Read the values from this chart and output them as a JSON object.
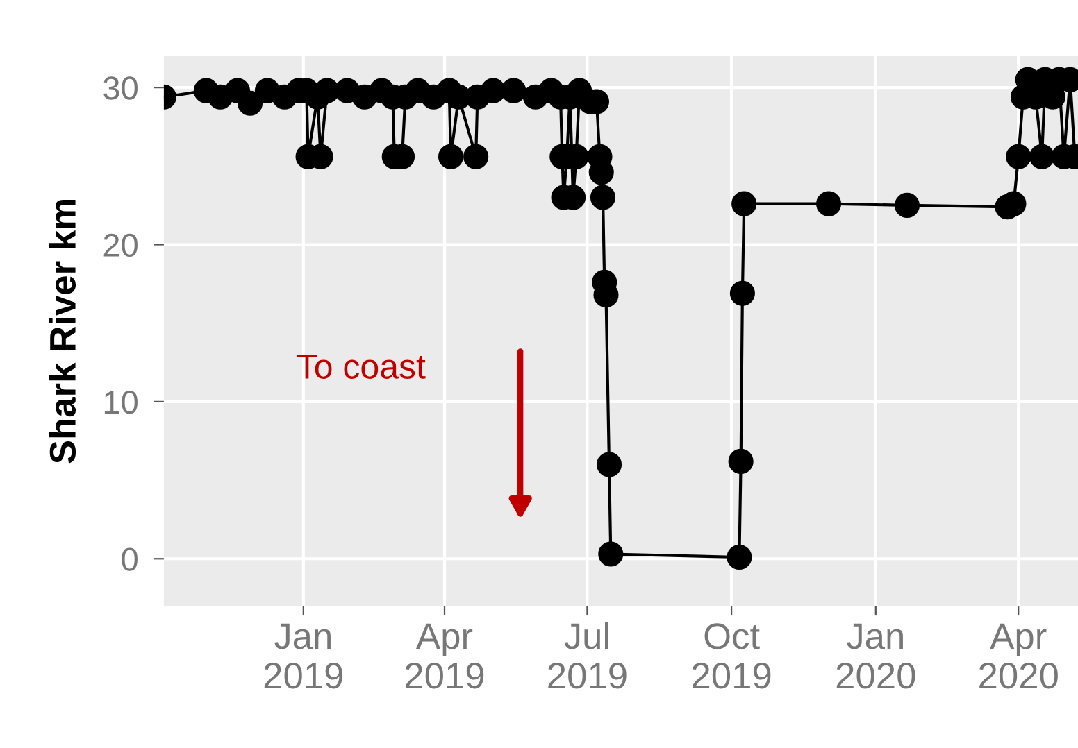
{
  "chart_data": {
    "type": "line",
    "ylabel": "Shark River km",
    "annotations": [
      "To coast"
    ],
    "marker": "circle",
    "line_style": "solid",
    "grid": true,
    "ylim": [
      -3,
      32
    ],
    "yticks": [
      0,
      10,
      20,
      30
    ],
    "xlim": [
      "2018-10-04",
      "2020-05-09"
    ],
    "xticks": [
      {
        "value": "2019-01-01",
        "label": "Jan\n2019"
      },
      {
        "value": "2019-04-01",
        "label": "Apr\n2019"
      },
      {
        "value": "2019-07-01",
        "label": "Jul\n2019"
      },
      {
        "value": "2019-10-01",
        "label": "Oct\n2019"
      },
      {
        "value": "2020-01-01",
        "label": "Jan\n2020"
      },
      {
        "value": "2020-04-01",
        "label": "Apr\n2020"
      }
    ],
    "series": [
      {
        "color": "#000000",
        "x": [
          "2018-10-04",
          "2018-10-31",
          "2018-11-09",
          "2018-11-20",
          "2018-11-28",
          "2018-12-09",
          "2018-12-20",
          "2018-12-29",
          "2019-01-03",
          "2019-01-04",
          "2019-01-10",
          "2019-01-12",
          "2019-01-16",
          "2019-01-29",
          "2019-02-09",
          "2019-02-20",
          "2019-02-27",
          "2019-02-28",
          "2019-03-05",
          "2019-03-07",
          "2019-03-15",
          "2019-03-25",
          "2019-04-04",
          "2019-04-05",
          "2019-04-10",
          "2019-04-21",
          "2019-04-22",
          "2019-05-02",
          "2019-05-15",
          "2019-05-29",
          "2019-06-08",
          "2019-06-14",
          "2019-06-15",
          "2019-06-16",
          "2019-06-18",
          "2019-06-20",
          "2019-06-22",
          "2019-06-24",
          "2019-06-26",
          "2019-07-03",
          "2019-07-07",
          "2019-07-09",
          "2019-07-10",
          "2019-07-11",
          "2019-07-12",
          "2019-07-13",
          "2019-07-15",
          "2019-07-16",
          "2019-10-06",
          "2019-10-07",
          "2019-10-08",
          "2019-10-09",
          "2019-12-02",
          "2020-01-21",
          "2020-03-25",
          "2020-03-29",
          "2020-04-01",
          "2020-04-04",
          "2020-04-07",
          "2020-04-12",
          "2020-04-16",
          "2020-04-18",
          "2020-04-23",
          "2020-04-27",
          "2020-04-30",
          "2020-05-04",
          "2020-05-07"
        ],
        "values": [
          29.4,
          29.8,
          29.4,
          29.8,
          29.0,
          29.8,
          29.4,
          29.8,
          29.8,
          25.6,
          29.4,
          25.6,
          29.8,
          29.8,
          29.4,
          29.8,
          29.4,
          25.6,
          25.6,
          29.4,
          29.8,
          29.4,
          29.8,
          25.6,
          29.4,
          25.6,
          29.4,
          29.8,
          29.8,
          29.4,
          29.8,
          29.4,
          25.6,
          23.0,
          25.6,
          29.4,
          23.0,
          25.6,
          29.8,
          29.1,
          29.1,
          25.6,
          24.6,
          23.0,
          17.6,
          16.8,
          6.0,
          0.3,
          0.1,
          6.2,
          16.9,
          22.6,
          22.6,
          22.5,
          22.4,
          22.6,
          25.6,
          29.4,
          30.5,
          29.4,
          25.6,
          30.5,
          29.4,
          30.5,
          25.6,
          30.5,
          25.6
        ]
      }
    ]
  }
}
